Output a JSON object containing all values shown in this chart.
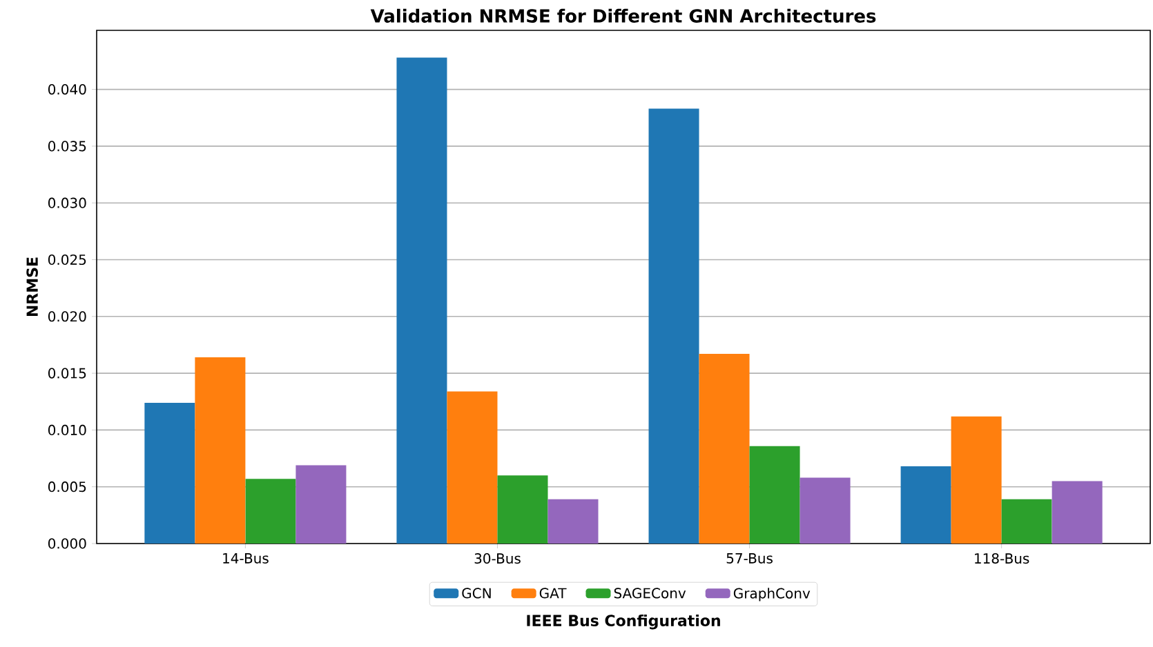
{
  "chart_data": {
    "type": "bar",
    "title": "Validation NRMSE for Different GNN Architectures",
    "xlabel": "IEEE Bus Configuration",
    "ylabel": "NRMSE",
    "categories": [
      "14-Bus",
      "30-Bus",
      "57-Bus",
      "118-Bus"
    ],
    "series": [
      {
        "name": "GCN",
        "color": "#1f77b4",
        "values": [
          0.0124,
          0.0428,
          0.0383,
          0.0068
        ]
      },
      {
        "name": "GAT",
        "color": "#ff7f0e",
        "values": [
          0.0164,
          0.0134,
          0.0167,
          0.0112
        ]
      },
      {
        "name": "SAGEConv",
        "color": "#2ca02c",
        "values": [
          0.0057,
          0.006,
          0.0086,
          0.0039
        ]
      },
      {
        "name": "GraphConv",
        "color": "#9467bd",
        "values": [
          0.0069,
          0.0039,
          0.0058,
          0.0055
        ]
      }
    ],
    "ylim": [
      0,
      0.0452
    ],
    "yticks": [
      {
        "value": 0,
        "label": "0.000"
      },
      {
        "value": 0.005,
        "label": "0.005"
      },
      {
        "value": 0.01,
        "label": "0.010"
      },
      {
        "value": 0.015,
        "label": "0.015"
      },
      {
        "value": 0.02,
        "label": "0.020"
      },
      {
        "value": 0.025,
        "label": "0.025"
      },
      {
        "value": 0.03,
        "label": "0.030"
      },
      {
        "value": 0.035,
        "label": "0.035"
      },
      {
        "value": 0.04,
        "label": "0.040"
      }
    ],
    "grid": "y",
    "legend": "bottom"
  }
}
